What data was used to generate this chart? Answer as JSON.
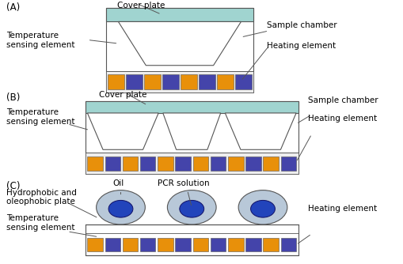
{
  "fig_width": 5.1,
  "fig_height": 3.34,
  "dpi": 100,
  "bg_color": "#ffffff",
  "cover_color": "#a0d4d0",
  "orange_color": "#e8900a",
  "purple_color": "#4444aa",
  "oil_color": "#b8c8d8",
  "pcr_color": "#2244bb",
  "line_color": "#555555",
  "labels": {
    "A": "(A)",
    "B": "(B)",
    "C": "(C)",
    "cover_plate": "Cover plate",
    "sample_chamber": "Sample chamber",
    "heating_element": "Heating element",
    "temp_sensing": "Temperature\nsensing element",
    "hydrophobic": "Hydrophobic and\noleophobic plate",
    "oil": "Oil",
    "pcr_solution": "PCR solution"
  }
}
